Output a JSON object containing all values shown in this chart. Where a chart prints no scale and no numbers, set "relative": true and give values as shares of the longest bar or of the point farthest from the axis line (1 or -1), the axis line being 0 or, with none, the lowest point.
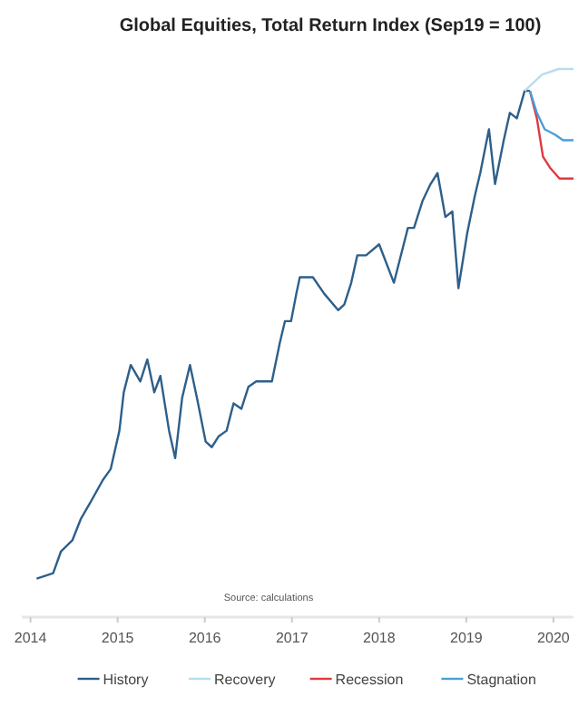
{
  "chart_data": {
    "type": "line",
    "title": "Global Equities, Total Return Index (Sep19 = 100)",
    "relative": true,
    "xlim": [
      2013.9,
      2020.23
    ],
    "xticks": [
      2014,
      2015,
      2016,
      2017,
      2018,
      2019,
      2020
    ],
    "legend": "bottom",
    "annotations": [
      "Source: calculations"
    ],
    "series": [
      {
        "name": "History",
        "color": "#2e5f8a",
        "x": [
          2014.07,
          2014.26,
          2014.35,
          2014.48,
          2014.58,
          2014.69,
          2014.83,
          2014.92,
          2015.02,
          2015.07,
          2015.15,
          2015.26,
          2015.34,
          2015.42,
          2015.49,
          2015.59,
          2015.66,
          2015.74,
          2015.83,
          2015.91,
          2016.01,
          2016.08,
          2016.16,
          2016.25,
          2016.33,
          2016.42,
          2016.5,
          2016.59,
          2016.67,
          2016.77,
          2016.86,
          2016.92,
          2016.99,
          2017.05,
          2017.09,
          2017.17,
          2017.24,
          2017.37,
          2017.53,
          2017.6,
          2017.68,
          2017.75,
          2017.85,
          2018.0,
          2018.17,
          2018.33,
          2018.4,
          2018.5,
          2018.59,
          2018.67,
          2018.76,
          2018.84,
          2018.91,
          2019.01,
          2019.1,
          2019.16,
          2019.26,
          2019.33,
          2019.43,
          2019.5,
          2019.58,
          2019.67,
          2019.73
        ],
        "values": [
          0.07,
          0.08,
          0.12,
          0.14,
          0.18,
          0.21,
          0.25,
          0.27,
          0.34,
          0.41,
          0.46,
          0.43,
          0.47,
          0.41,
          0.44,
          0.34,
          0.29,
          0.4,
          0.46,
          0.4,
          0.32,
          0.31,
          0.33,
          0.34,
          0.39,
          0.38,
          0.42,
          0.43,
          0.43,
          0.43,
          0.5,
          0.54,
          0.54,
          0.59,
          0.62,
          0.62,
          0.62,
          0.59,
          0.56,
          0.57,
          0.61,
          0.66,
          0.66,
          0.68,
          0.61,
          0.71,
          0.71,
          0.76,
          0.79,
          0.81,
          0.73,
          0.74,
          0.6,
          0.7,
          0.77,
          0.81,
          0.89,
          0.79,
          0.87,
          0.92,
          0.91,
          0.96,
          0.96
        ]
      },
      {
        "name": "Recovery",
        "color": "#b8dcf0",
        "x": [
          2019.67,
          2019.87,
          2020.06,
          2020.23
        ],
        "values": [
          0.96,
          0.99,
          1,
          1
        ]
      },
      {
        "name": "Recession",
        "color": "#e0393e",
        "x": [
          2019.73,
          2019.81,
          2019.88,
          2019.96,
          2020.07,
          2020.23
        ],
        "values": [
          0.96,
          0.91,
          0.84,
          0.82,
          0.8,
          0.8
        ]
      },
      {
        "name": "Stagnation",
        "color": "#4a9fd6",
        "x": [
          2019.73,
          2019.81,
          2019.9,
          2020.02,
          2020.11,
          2020.23
        ],
        "values": [
          0.96,
          0.92,
          0.89,
          0.88,
          0.87,
          0.87
        ]
      }
    ]
  }
}
